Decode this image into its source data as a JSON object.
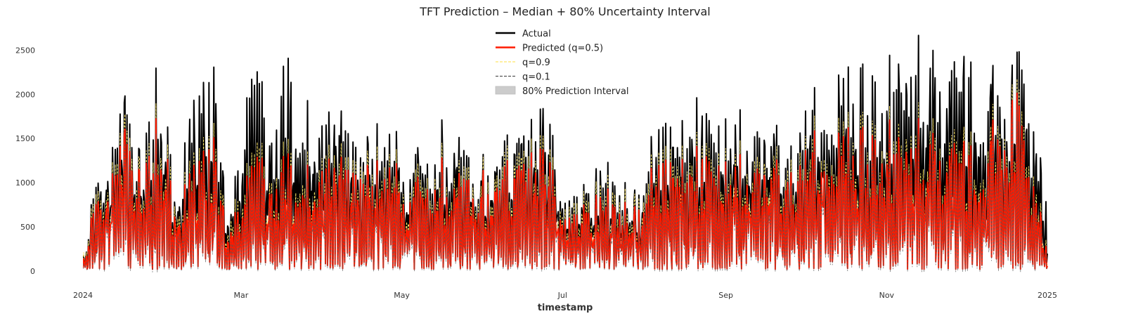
{
  "chart_data": {
    "type": "line",
    "title": "TFT Prediction – Median + 80% Uncertainty Interval",
    "xlabel": "timestamp",
    "ylabel": "",
    "xlim": [
      "2024-01-01",
      "2025-01-01"
    ],
    "ylim": [
      -80,
      2750
    ],
    "grid": false,
    "legend_position": "top-center",
    "x_ticks": [
      {
        "label": "2024",
        "date": "2024-01-01"
      },
      {
        "label": "Mar",
        "date": "2024-03-01"
      },
      {
        "label": "May",
        "date": "2024-05-01"
      },
      {
        "label": "Jul",
        "date": "2024-07-01"
      },
      {
        "label": "Sep",
        "date": "2024-09-01"
      },
      {
        "label": "Nov",
        "date": "2024-11-01"
      },
      {
        "label": "2025",
        "date": "2025-01-01"
      }
    ],
    "y_ticks": [
      0,
      500,
      1000,
      1500,
      2000,
      2500
    ],
    "legend": [
      {
        "label": "Actual",
        "style": "solid",
        "color": "#000000"
      },
      {
        "label": "Predicted (q=0.5)",
        "style": "solid",
        "color": "#ff1a00"
      },
      {
        "label": "q=0.9",
        "style": "dashed",
        "color": "#ffe566"
      },
      {
        "label": "q=0.1",
        "style": "dashed",
        "color": "#555555"
      },
      {
        "label": "80% Prediction Interval",
        "style": "fill",
        "color": "#cccccc"
      }
    ],
    "colors": {
      "actual": "#000000",
      "median": "#ff1a00",
      "q90": "#ffe566",
      "q10": "#555555",
      "interval": "#cccccc"
    },
    "series": [
      {
        "name": "Actual",
        "x": [
          "2024-01-01",
          "2024-01-08",
          "2024-01-15",
          "2024-01-22",
          "2024-01-29",
          "2024-02-05",
          "2024-02-12",
          "2024-02-19",
          "2024-02-26",
          "2024-03-04",
          "2024-03-11",
          "2024-03-18",
          "2024-03-25",
          "2024-04-01",
          "2024-04-08",
          "2024-04-15",
          "2024-04-22",
          "2024-04-29",
          "2024-05-06",
          "2024-05-13",
          "2024-05-20",
          "2024-05-27",
          "2024-06-03",
          "2024-06-10",
          "2024-06-17",
          "2024-06-24",
          "2024-07-01",
          "2024-07-08",
          "2024-07-15",
          "2024-07-22",
          "2024-07-29",
          "2024-08-05",
          "2024-08-12",
          "2024-08-19",
          "2024-08-26",
          "2024-09-02",
          "2024-09-09",
          "2024-09-16",
          "2024-09-23",
          "2024-09-30",
          "2024-10-07",
          "2024-10-14",
          "2024-10-21",
          "2024-10-28",
          "2024-11-04",
          "2024-11-11",
          "2024-11-18",
          "2024-11-25",
          "2024-12-02",
          "2024-12-09",
          "2024-12-16",
          "2024-12-23",
          "2024-12-31"
        ],
        "values": [
          100,
          1550,
          2300,
          1700,
          2480,
          950,
          2300,
          2550,
          700,
          2550,
          1900,
          2450,
          2100,
          1900,
          2000,
          1400,
          1800,
          1600,
          1500,
          1600,
          1950,
          1300,
          1300,
          1550,
          1800,
          2120,
          1000,
          1000,
          1300,
          1000,
          1000,
          1900,
          1700,
          2120,
          2000,
          2000,
          2000,
          2100,
          1600,
          1900,
          2250,
          2250,
          2400,
          2200,
          2650,
          2650,
          2600,
          2650,
          2550,
          2300,
          2400,
          2560,
          800
        ]
      },
      {
        "name": "Predicted (q=0.5)",
        "x": [
          "2024-01-01",
          "2024-01-08",
          "2024-01-15",
          "2024-01-22",
          "2024-01-29",
          "2024-02-05",
          "2024-02-12",
          "2024-02-19",
          "2024-02-26",
          "2024-03-04",
          "2024-03-11",
          "2024-03-18",
          "2024-03-25",
          "2024-04-01",
          "2024-04-08",
          "2024-04-15",
          "2024-04-22",
          "2024-04-29",
          "2024-05-06",
          "2024-05-13",
          "2024-05-20",
          "2024-05-27",
          "2024-06-03",
          "2024-06-10",
          "2024-06-17",
          "2024-06-24",
          "2024-07-01",
          "2024-07-08",
          "2024-07-15",
          "2024-07-22",
          "2024-07-29",
          "2024-08-05",
          "2024-08-12",
          "2024-08-19",
          "2024-08-26",
          "2024-09-02",
          "2024-09-09",
          "2024-09-16",
          "2024-09-23",
          "2024-09-30",
          "2024-10-07",
          "2024-10-14",
          "2024-10-21",
          "2024-10-28",
          "2024-11-04",
          "2024-11-11",
          "2024-11-18",
          "2024-11-25",
          "2024-12-02",
          "2024-12-09",
          "2024-12-16",
          "2024-12-23",
          "2024-12-31"
        ],
        "values": [
          80,
          1300,
          1950,
          1500,
          1950,
          800,
          1500,
          1750,
          500,
          1450,
          1250,
          1400,
          1350,
          1400,
          1500,
          1200,
          1400,
          1300,
          1200,
          1300,
          1450,
          1150,
          1100,
          1300,
          1500,
          1650,
          800,
          800,
          1000,
          800,
          850,
          1500,
          1350,
          1600,
          1550,
          1500,
          1550,
          1650,
          1350,
          1500,
          1700,
          1650,
          1750,
          1600,
          1800,
          1750,
          1700,
          1700,
          1600,
          1700,
          2150,
          1750,
          220
        ]
      },
      {
        "name": "q=0.9",
        "x": [
          "2024-01-01",
          "2024-01-08",
          "2024-01-15",
          "2024-01-22",
          "2024-01-29",
          "2024-02-05",
          "2024-02-12",
          "2024-02-19",
          "2024-02-26",
          "2024-03-04",
          "2024-03-11",
          "2024-03-18",
          "2024-03-25",
          "2024-04-01",
          "2024-04-08",
          "2024-04-15",
          "2024-04-22",
          "2024-04-29",
          "2024-05-06",
          "2024-05-13",
          "2024-05-20",
          "2024-05-27",
          "2024-06-03",
          "2024-06-10",
          "2024-06-17",
          "2024-06-24",
          "2024-07-01",
          "2024-07-08",
          "2024-07-15",
          "2024-07-22",
          "2024-07-29",
          "2024-08-05",
          "2024-08-12",
          "2024-08-19",
          "2024-08-26",
          "2024-09-02",
          "2024-09-09",
          "2024-09-16",
          "2024-09-23",
          "2024-09-30",
          "2024-10-07",
          "2024-10-14",
          "2024-10-21",
          "2024-10-28",
          "2024-11-04",
          "2024-11-11",
          "2024-11-18",
          "2024-11-25",
          "2024-12-02",
          "2024-12-09",
          "2024-12-16",
          "2024-12-23",
          "2024-12-31"
        ],
        "values": [
          150,
          1450,
          2100,
          1650,
          2100,
          950,
          1650,
          1900,
          650,
          1600,
          1400,
          1550,
          1500,
          1550,
          1650,
          1350,
          1550,
          1450,
          1350,
          1450,
          1600,
          1300,
          1250,
          1450,
          1650,
          1800,
          950,
          950,
          1150,
          950,
          1000,
          1650,
          1500,
          1750,
          1700,
          1650,
          1700,
          1800,
          1500,
          1650,
          1850,
          1800,
          1900,
          1750,
          1950,
          1900,
          1850,
          1850,
          1750,
          1850,
          2300,
          1900,
          300
        ]
      },
      {
        "name": "q=0.1",
        "x": [
          "2024-01-01",
          "2024-01-08",
          "2024-01-15",
          "2024-01-22",
          "2024-01-29",
          "2024-02-05",
          "2024-02-12",
          "2024-02-19",
          "2024-02-26",
          "2024-03-04",
          "2024-03-11",
          "2024-03-18",
          "2024-03-25",
          "2024-04-01",
          "2024-04-08",
          "2024-04-15",
          "2024-04-22",
          "2024-04-29",
          "2024-05-06",
          "2024-05-13",
          "2024-05-20",
          "2024-05-27",
          "2024-06-03",
          "2024-06-10",
          "2024-06-17",
          "2024-06-24",
          "2024-07-01",
          "2024-07-08",
          "2024-07-15",
          "2024-07-22",
          "2024-07-29",
          "2024-08-05",
          "2024-08-12",
          "2024-08-19",
          "2024-08-26",
          "2024-09-02",
          "2024-09-09",
          "2024-09-16",
          "2024-09-23",
          "2024-09-30",
          "2024-10-07",
          "2024-10-14",
          "2024-10-21",
          "2024-10-28",
          "2024-11-04",
          "2024-11-11",
          "2024-11-18",
          "2024-11-25",
          "2024-12-02",
          "2024-12-09",
          "2024-12-16",
          "2024-12-23",
          "2024-12-31"
        ],
        "values": [
          30,
          1150,
          1800,
          1350,
          1800,
          650,
          1350,
          1600,
          380,
          1300,
          1100,
          1250,
          1200,
          1250,
          1350,
          1050,
          1250,
          1150,
          1050,
          1150,
          1300,
          1000,
          950,
          1150,
          1350,
          1500,
          650,
          650,
          850,
          650,
          700,
          1350,
          1200,
          1450,
          1400,
          1350,
          1400,
          1500,
          1200,
          1350,
          1550,
          1500,
          1600,
          1450,
          1650,
          1600,
          1550,
          1550,
          1450,
          1550,
          2000,
          1600,
          150
        ]
      }
    ]
  }
}
